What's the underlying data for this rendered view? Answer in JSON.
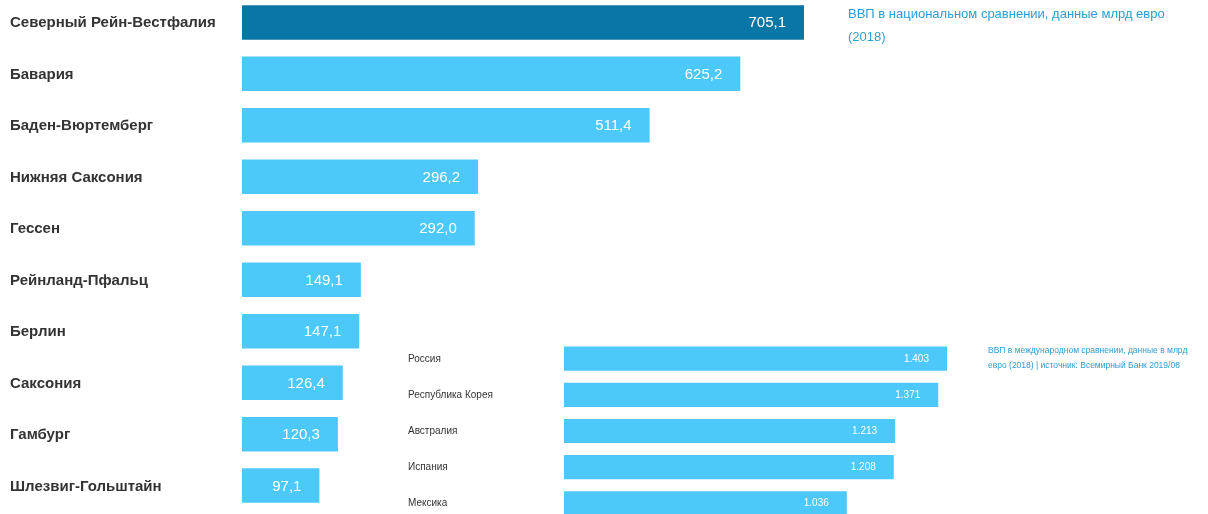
{
  "chart_data": [
    {
      "type": "bar",
      "orientation": "horizontal",
      "annotations": [
        "ВВП в национальном сравнении, данные млрд евро (2018)"
      ],
      "categories": [
        "Северный Рейн-Вестфалия",
        "Бавария",
        "Баден-Вюртемберг",
        "Нижняя Саксония",
        "Гессен",
        "Рейнланд-Пфальц",
        "Берлин",
        "Саксония",
        "Гамбург",
        "Шлезвиг-Гольштайн"
      ],
      "values": [
        705.1,
        625.2,
        511.4,
        296.2,
        292.0,
        149.1,
        147.1,
        126.4,
        120.3,
        97.1
      ],
      "value_labels": [
        "705,1",
        "625,2",
        "511,4",
        "296,2",
        "292,0",
        "149,1",
        "147,1",
        "126,4",
        "120,3",
        "97,1"
      ],
      "colors": [
        "#0a76a6",
        "#4cc8fa",
        "#4cc8fa",
        "#4cc8fa",
        "#4cc8fa",
        "#4cc8fa",
        "#4cc8fa",
        "#4cc8fa",
        "#4cc8fa",
        "#4cc8fa"
      ]
    },
    {
      "type": "bar",
      "orientation": "horizontal",
      "annotations": [
        "ВВП в международном сравнении, данные в млрд евро (2018) | источник: Всемирный Банк 2019/08"
      ],
      "categories": [
        "Россия",
        "Республика Корея",
        "Австралия",
        "Испания",
        "Мексика"
      ],
      "values": [
        1403,
        1371,
        1213,
        1208,
        1036
      ],
      "value_labels": [
        "1.403",
        "1.371",
        "1.213",
        "1.208",
        "1.036"
      ],
      "colors": [
        "#4cc8fa",
        "#4cc8fa",
        "#4cc8fa",
        "#4cc8fa",
        "#4cc8fa"
      ]
    }
  ]
}
